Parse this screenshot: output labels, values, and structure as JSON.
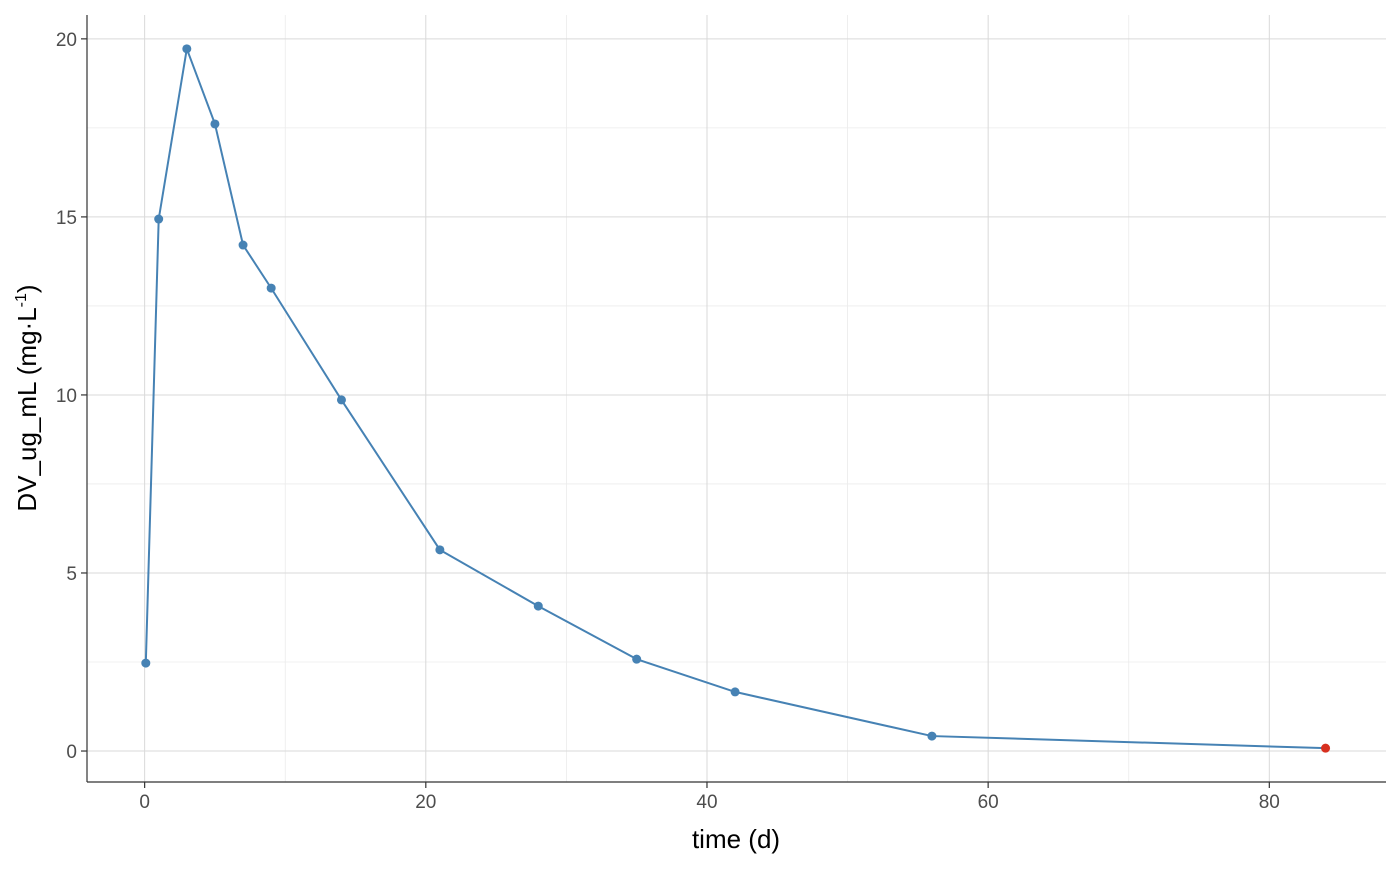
{
  "chart_data": {
    "type": "line",
    "title": "",
    "xlabel": "time (d)",
    "ylabel": "DV_ug_mL (mg·L",
    "ylabel_superscript": "-1",
    "ylabel_close": ")",
    "xlim": [
      -4.1,
      88.3
    ],
    "ylim": [
      -0.87,
      20.67
    ],
    "x_ticks": [
      0,
      20,
      40,
      60,
      80
    ],
    "y_ticks": [
      0,
      5,
      10,
      15,
      20
    ],
    "x_minor": [
      10,
      30,
      50,
      70
    ],
    "y_minor": [
      2.5,
      7.5,
      12.5,
      17.5
    ],
    "grid": true,
    "series": [
      {
        "color": "#4682b4",
        "x": [
          0.083,
          1,
          3,
          5,
          7,
          9,
          14,
          21,
          28,
          35,
          42,
          56,
          84
        ],
        "y": [
          2.47,
          14.94,
          19.72,
          17.61,
          14.21,
          13.0,
          9.86,
          5.65,
          4.07,
          2.58,
          1.66,
          0.42,
          0.08
        ],
        "point_colors": [
          "#4682b4",
          "#4682b4",
          "#4682b4",
          "#4682b4",
          "#4682b4",
          "#4682b4",
          "#4682b4",
          "#4682b4",
          "#4682b4",
          "#4682b4",
          "#4682b4",
          "#4682b4",
          "#d7301f"
        ]
      }
    ]
  }
}
